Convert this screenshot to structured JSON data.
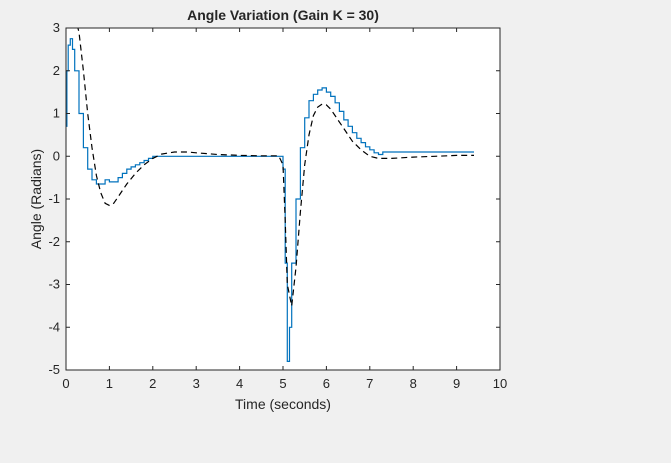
{
  "chart_data": {
    "type": "line",
    "title": "Angle Variation (Gain K = 30)",
    "xlabel": "Time (seconds)",
    "ylabel": "Angle (Radians)",
    "xlim": [
      0,
      10
    ],
    "ylim": [
      -5,
      3
    ],
    "xticks": [
      0,
      1,
      2,
      3,
      4,
      5,
      6,
      7,
      8,
      9,
      10
    ],
    "yticks": [
      -5,
      -4,
      -3,
      -2,
      -1,
      0,
      1,
      2,
      3
    ],
    "grid": false,
    "legend": "none",
    "series": [
      {
        "style": "stairs",
        "color": "#0072bd",
        "x": [
          0,
          0.02,
          0.05,
          0.1,
          0.15,
          0.2,
          0.3,
          0.4,
          0.5,
          0.6,
          0.7,
          0.8,
          0.9,
          1.0,
          1.1,
          1.2,
          1.3,
          1.4,
          1.5,
          1.6,
          1.7,
          1.8,
          1.9,
          2.0,
          2.2,
          2.5,
          3.0,
          4.0,
          4.9,
          5.0,
          5.05,
          5.1,
          5.15,
          5.2,
          5.3,
          5.4,
          5.5,
          5.6,
          5.7,
          5.8,
          5.9,
          6.0,
          6.1,
          6.2,
          6.3,
          6.4,
          6.5,
          6.6,
          6.7,
          6.8,
          6.9,
          7.0,
          7.1,
          7.2,
          7.3,
          7.4,
          8.0,
          9.0,
          9.4
        ],
        "y": [
          0.7,
          2.0,
          2.6,
          2.75,
          2.5,
          2.0,
          1.0,
          0.2,
          -0.3,
          -0.55,
          -0.65,
          -0.65,
          -0.55,
          -0.6,
          -0.6,
          -0.5,
          -0.4,
          -0.3,
          -0.25,
          -0.2,
          -0.15,
          -0.1,
          -0.05,
          0,
          0,
          0,
          0,
          0,
          0,
          -0.3,
          -2.5,
          -4.8,
          -4.0,
          -2.5,
          -1.0,
          0.2,
          0.9,
          1.3,
          1.45,
          1.55,
          1.6,
          1.5,
          1.4,
          1.25,
          1.05,
          0.85,
          0.7,
          0.55,
          0.42,
          0.32,
          0.22,
          0.15,
          0.08,
          0.04,
          0.1,
          0.1,
          0.1,
          0.1,
          0.1
        ]
      },
      {
        "style": "dashed",
        "color": "#000000",
        "x": [
          0.2,
          0.3,
          0.4,
          0.5,
          0.6,
          0.7,
          0.8,
          0.9,
          1.0,
          1.1,
          1.2,
          1.4,
          1.6,
          1.8,
          2.0,
          2.2,
          2.5,
          2.8,
          3.0,
          3.5,
          4.0,
          4.5,
          4.9,
          5.0,
          5.05,
          5.1,
          5.2,
          5.3,
          5.4,
          5.5,
          5.6,
          5.7,
          5.8,
          5.9,
          6.0,
          6.1,
          6.2,
          6.3,
          6.4,
          6.5,
          6.6,
          6.8,
          7.0,
          7.2,
          7.5,
          8.0,
          8.5,
          9.0,
          9.4
        ],
        "y": [
          3.3,
          2.9,
          2.0,
          1.0,
          0.2,
          -0.45,
          -0.85,
          -1.1,
          -1.15,
          -1.1,
          -0.95,
          -0.65,
          -0.4,
          -0.2,
          -0.05,
          0.05,
          0.1,
          0.1,
          0.08,
          0.04,
          0.02,
          0.01,
          0.01,
          -0.2,
          -1.5,
          -3.0,
          -3.5,
          -2.6,
          -1.3,
          -0.2,
          0.5,
          0.95,
          1.15,
          1.22,
          1.2,
          1.1,
          0.95,
          0.8,
          0.65,
          0.5,
          0.35,
          0.15,
          0.0,
          -0.05,
          -0.05,
          -0.02,
          0.0,
          0.02,
          0.02
        ]
      }
    ]
  }
}
